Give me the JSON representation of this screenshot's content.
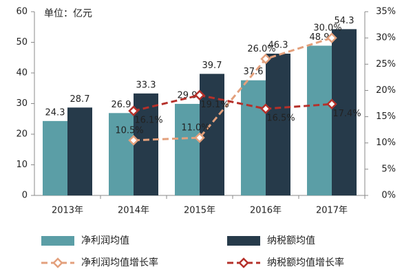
{
  "chart_data": {
    "type": "bar-line",
    "unit_label": "单位：亿元",
    "categories": [
      "2013年",
      "2014年",
      "2015年",
      "2016年",
      "2017年"
    ],
    "ylim": [
      0,
      60
    ],
    "yticks": [
      0,
      10,
      20,
      30,
      40,
      50,
      60
    ],
    "y2lim": [
      0,
      35
    ],
    "y2ticks": [
      {
        "value": 0,
        "label": "0%"
      },
      {
        "value": 5,
        "label": "5%"
      },
      {
        "value": 10,
        "label": "10%"
      },
      {
        "value": 15,
        "label": "15%"
      },
      {
        "value": 20,
        "label": "20%"
      },
      {
        "value": 25,
        "label": "25%"
      },
      {
        "value": 30,
        "label": "30%"
      },
      {
        "value": 35,
        "label": "35%"
      }
    ],
    "series": [
      {
        "name": "净利润均值",
        "type": "bar",
        "color": "#5b9ea6",
        "values": [
          24.3,
          26.9,
          29.9,
          37.6,
          48.9
        ]
      },
      {
        "name": "纳税额均值",
        "type": "bar",
        "color": "#263a4a",
        "values": [
          28.7,
          33.3,
          39.7,
          46.3,
          54.3
        ]
      },
      {
        "name": "净利润均值增长率",
        "type": "line",
        "axis": "y2",
        "color": "#e3a07c",
        "values": [
          null,
          10.5,
          11.0,
          26.0,
          30.0
        ],
        "value_labels": [
          null,
          "10.5%",
          "11.0%",
          "26.0%",
          "30.0%"
        ]
      },
      {
        "name": "纳税额均值增长率",
        "type": "line",
        "axis": "y2",
        "color": "#b5302a",
        "values": [
          null,
          16.1,
          19.1,
          16.5,
          17.4
        ],
        "value_labels": [
          null,
          "16.1%",
          "19.1%",
          "16.5%",
          "17.4%"
        ]
      }
    ]
  }
}
